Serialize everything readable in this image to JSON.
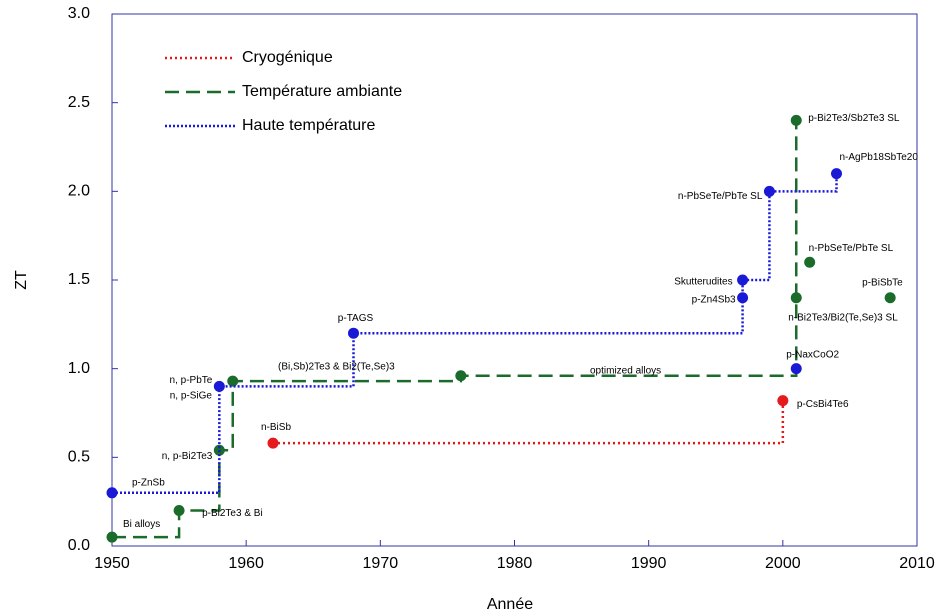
{
  "chart_data": {
    "type": "step",
    "x_label": "Année",
    "y_label": "ZT",
    "xlim": [
      1950,
      2010
    ],
    "xticks": [
      1950,
      1960,
      1970,
      1980,
      1990,
      2000,
      2010
    ],
    "ylim": [
      0,
      3
    ],
    "yticks": [
      {
        "value": 0,
        "label": "0.0"
      },
      0.5,
      {
        "value": 1,
        "label": "1.0"
      },
      1.5,
      {
        "value": 2,
        "label": "2.0"
      },
      2.5,
      {
        "value": 3,
        "label": "3.0"
      }
    ],
    "series": [
      {
        "name": "Cryogénique",
        "color": "#e41a1c",
        "dash": "2 3",
        "x": [
          1962,
          2000
        ],
        "values": [
          0.58,
          0.82
        ],
        "labels": [
          "n-BiSb",
          "p-CsBi4Te6"
        ],
        "points": {
          "x": [],
          "values": [],
          "labels": []
        }
      },
      {
        "name": "Température ambiante",
        "color": "#1b6b2b",
        "dash": "14 7",
        "x": [
          1950,
          1955,
          1958,
          1959,
          1976,
          2001,
          2001
        ],
        "values": [
          0.05,
          0.2,
          0.54,
          0.93,
          0.96,
          1.4,
          2.4
        ],
        "labels": [
          "Bi alloys",
          "p-Bi2Te3 & Bi",
          "n, p-Bi2Te3",
          null,
          null,
          "n-Bi2Te3/Bi2(Te,Se)3 SL",
          "p-Bi2Te3/Sb2Te3 SL"
        ],
        "points": {
          "x": [
            2002,
            2008
          ],
          "values": [
            1.6,
            1.4
          ],
          "labels": [
            "n-PbSeTe/PbTe SL",
            "p-BiSbTe"
          ]
        }
      },
      {
        "name": "Haute température",
        "color": "#1a1ad6",
        "dash": "2 2",
        "x": [
          1950,
          1958,
          1968,
          1997,
          1997,
          1999,
          2004
        ],
        "values": [
          0.3,
          0.9,
          1.2,
          1.4,
          1.5,
          2.0,
          2.1
        ],
        "labels": [
          "p-ZnSb",
          "n, p-PbTe",
          "p-TAGS",
          "p-Zn4Sb3",
          "Skutterudites",
          "n-PbSeTe/PbTe SL",
          "n-AgPb18SbTe20"
        ],
        "points": {
          "x": [
            2001
          ],
          "values": [
            1.0
          ],
          "labels": [
            "p-NaxCoO2"
          ]
        }
      }
    ],
    "annotations": [
      "n, p-SiGe",
      "(Bi,Sb)2Te3 & Bi2(Te,Se)3",
      "optimized alloys"
    ]
  }
}
